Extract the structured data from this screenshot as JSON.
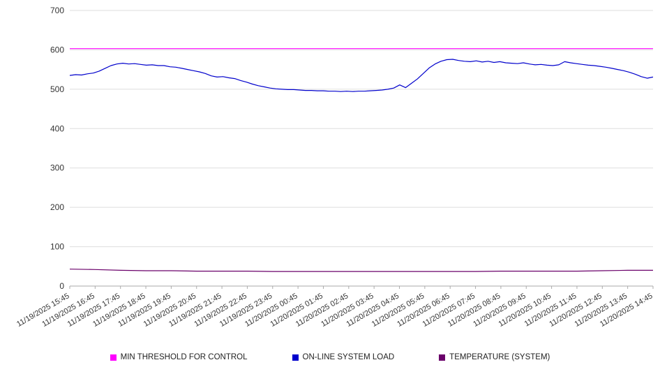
{
  "chart_data": {
    "type": "line",
    "title": "",
    "xlabel": "",
    "ylabel": "",
    "ylim": [
      0,
      700
    ],
    "y_tick_step": 100,
    "grid": true,
    "legend_position": "bottom",
    "x_tick_labels": [
      "11/19/2025 15:45",
      "11/19/2025 16:45",
      "11/19/2025 17:45",
      "11/19/2025 18:45",
      "11/19/2025 19:45",
      "11/19/2025 20:45",
      "11/19/2025 21:45",
      "11/19/2025 22:45",
      "11/19/2025 23:45",
      "11/20/2025 00:45",
      "11/20/2025 01:45",
      "11/20/2025 02:45",
      "11/20/2025 03:45",
      "11/20/2025 04:45",
      "11/20/2025 05:45",
      "11/20/2025 06:45",
      "11/20/2025 07:45",
      "11/20/2025 08:45",
      "11/20/2025 09:45",
      "11/20/2025 10:45",
      "11/20/2025 11:45",
      "11/20/2025 12:45",
      "11/20/2025 13:45",
      "11/20/2025 14:45"
    ],
    "series": [
      {
        "name": "MIN THRESHOLD FOR CONTROL",
        "color": "#ff00ff",
        "values": [
          603,
          603
        ]
      },
      {
        "name": "ON-LINE SYSTEM LOAD",
        "color": "#0000cc",
        "values": [
          535,
          537,
          536,
          539,
          541,
          546,
          553,
          560,
          564,
          566,
          564,
          565,
          563,
          561,
          562,
          560,
          560,
          557,
          556,
          553,
          550,
          547,
          544,
          540,
          534,
          531,
          532,
          529,
          527,
          522,
          518,
          513,
          509,
          506,
          503,
          501,
          500,
          499,
          499,
          498,
          497,
          497,
          496,
          496,
          495,
          495,
          494,
          495,
          494,
          495,
          495,
          496,
          497,
          498,
          500,
          503,
          511,
          504,
          515,
          526,
          540,
          554,
          564,
          571,
          575,
          576,
          573,
          571,
          570,
          572,
          569,
          571,
          568,
          570,
          567,
          566,
          565,
          567,
          564,
          562,
          563,
          561,
          560,
          562,
          570,
          567,
          565,
          563,
          561,
          560,
          558,
          556,
          553,
          550,
          547,
          543,
          538,
          532,
          528,
          531
        ]
      },
      {
        "name": "TEMPERATURE (SYSTEM)",
        "color": "#6a006a",
        "values": [
          43,
          42,
          40,
          39,
          39,
          38,
          38,
          38,
          37,
          37,
          37,
          37,
          37,
          37,
          37,
          37,
          37,
          38,
          38,
          38,
          38,
          39,
          40,
          40
        ]
      }
    ]
  }
}
